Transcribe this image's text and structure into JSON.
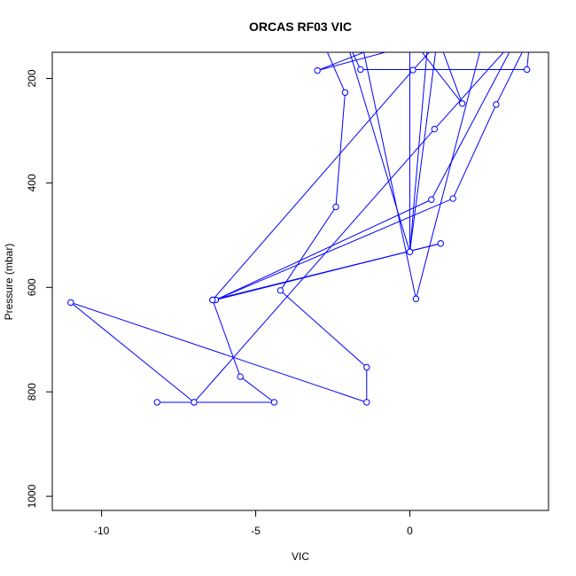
{
  "chart_data": {
    "type": "line",
    "title": "ORCAS RF03 VIC",
    "xlabel": "VIC",
    "ylabel": "Pressure (mbar)",
    "xlim": [
      -11.6,
      4.5
    ],
    "ylim": [
      1027,
      150
    ],
    "y_reversed": true,
    "x_ticks": [
      -10,
      -5,
      0
    ],
    "y_ticks": [
      200,
      400,
      600,
      800,
      1000
    ],
    "grid": false,
    "legend": "none",
    "marker": "open-circle",
    "series": [
      {
        "color": "#0000ff",
        "points": [
          [
            -8.2,
            820
          ],
          [
            -7.0,
            820
          ],
          [
            -4.4,
            820
          ],
          [
            -5.5,
            771
          ],
          [
            -6.4,
            624
          ],
          [
            -6.3,
            624
          ],
          [
            1.4,
            430
          ],
          [
            2.8,
            250
          ],
          [
            3.9,
            120
          ],
          [
            3.8,
            183
          ],
          [
            -1.6,
            183
          ],
          [
            -2.1,
            120
          ],
          [
            0.0,
            532
          ],
          [
            0.9,
            120
          ],
          [
            1.7,
            248
          ],
          [
            0.0,
            120
          ],
          [
            0.0,
            532
          ],
          [
            0.6,
            120
          ],
          [
            2.4,
            120
          ],
          [
            0.2,
            622
          ],
          [
            -1.6,
            120
          ],
          [
            -2.9,
            120
          ],
          [
            -2.1,
            227
          ],
          [
            -2.4,
            446
          ],
          [
            -4.2,
            606
          ],
          [
            -1.4,
            753
          ],
          [
            -1.4,
            820
          ],
          [
            -11.0,
            629
          ],
          [
            -7.0,
            820
          ],
          [
            0.8,
            297
          ],
          [
            3.5,
            120
          ],
          [
            0.7,
            432
          ],
          [
            -6.3,
            624
          ],
          [
            1.0,
            516
          ],
          [
            -6.4,
            624
          ],
          [
            0.1,
            184
          ],
          [
            1.1,
            120
          ],
          [
            -3.0,
            185
          ],
          [
            -0.2,
            120
          ]
        ]
      }
    ]
  }
}
